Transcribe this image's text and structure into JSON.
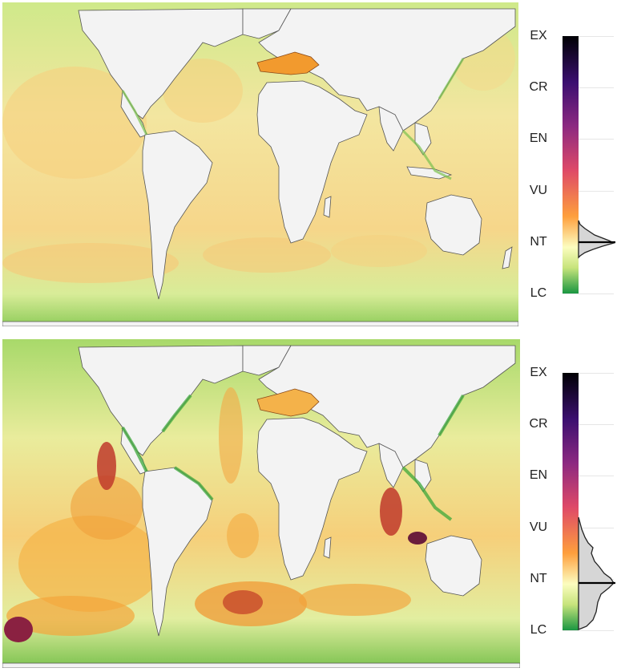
{
  "maps": [
    {
      "id": "top",
      "colorbar": {
        "levels": [
          "EX",
          "CR",
          "EN",
          "VU",
          "NT",
          "LC"
        ]
      }
    },
    {
      "id": "bottom",
      "colorbar": {
        "levels": [
          "EX",
          "CR",
          "EN",
          "VU",
          "NT",
          "LC"
        ]
      }
    }
  ],
  "colors": {
    "ocean_low": "#a6d96a",
    "ocean_mid": "#f5e79a",
    "ocean_high": "#f7b24a",
    "hotspot": "#c0392b",
    "severe": "#6b1d3c",
    "land": "#f3f3f3",
    "scale": [
      "#000004",
      "#3b0f70",
      "#8c2981",
      "#de4968",
      "#fe9f3d",
      "#fcfdbf",
      "#a6d96a",
      "#1a9641"
    ]
  }
}
